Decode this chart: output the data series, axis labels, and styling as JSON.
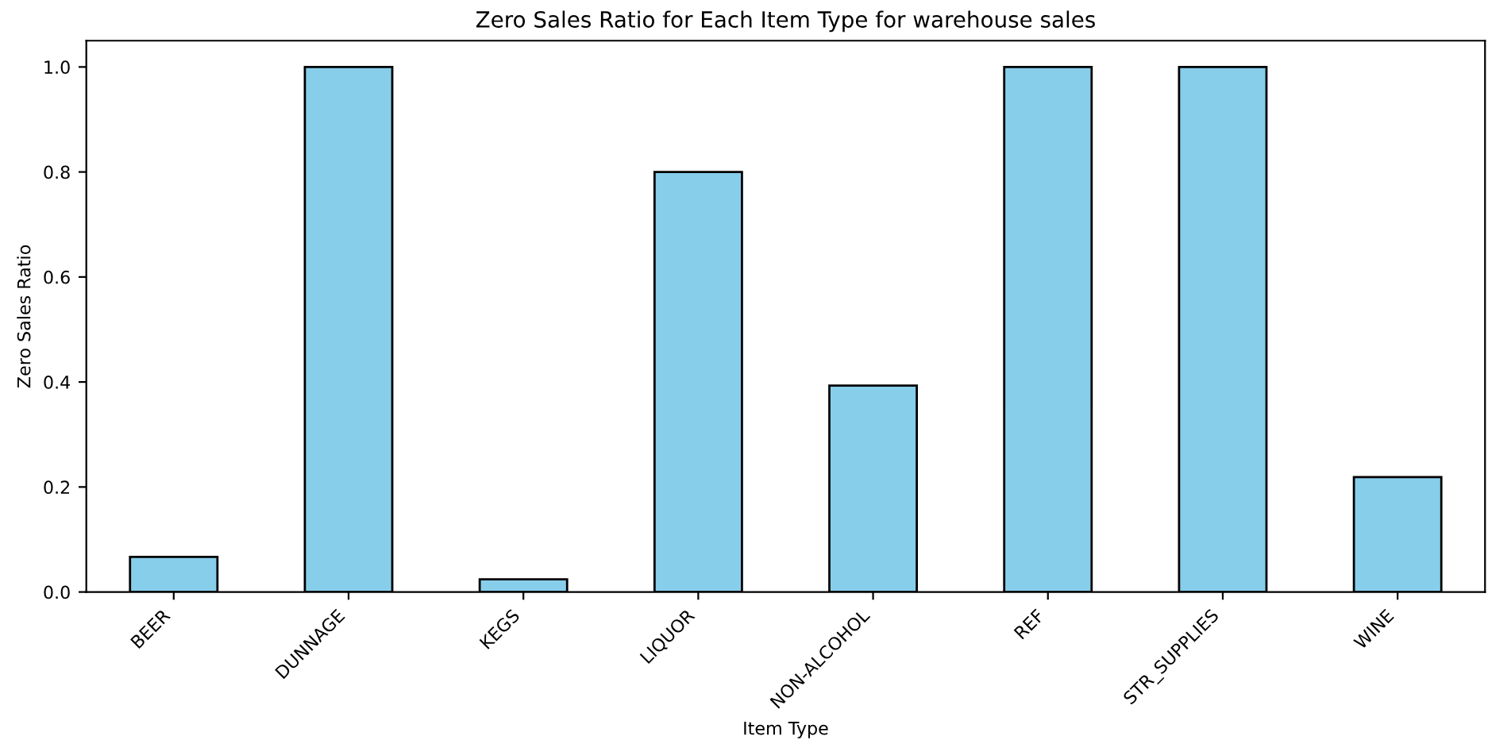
{
  "chart_data": {
    "type": "bar",
    "title": "Zero Sales Ratio for Each Item Type for warehouse sales",
    "xlabel": "Item Type",
    "ylabel": "Zero Sales Ratio",
    "categories": [
      "BEER",
      "DUNNAGE",
      "KEGS",
      "LIQUOR",
      "NON-ALCOHOL",
      "REF",
      "STR_SUPPLIES",
      "WINE"
    ],
    "values": [
      0.067,
      1.0,
      0.024,
      0.8,
      0.393,
      1.0,
      1.0,
      0.219
    ],
    "color": "#87ceeb",
    "ylim": [
      0,
      1.05
    ],
    "yticks": [
      {
        "value": 0,
        "label": "0.0"
      },
      {
        "value": 0.2,
        "label": "0.2"
      },
      {
        "value": 0.4,
        "label": "0.4"
      },
      {
        "value": 0.6,
        "label": "0.6"
      },
      {
        "value": 0.8,
        "label": "0.8"
      },
      {
        "value": 1.0,
        "label": "1.0"
      }
    ],
    "grid": false
  }
}
